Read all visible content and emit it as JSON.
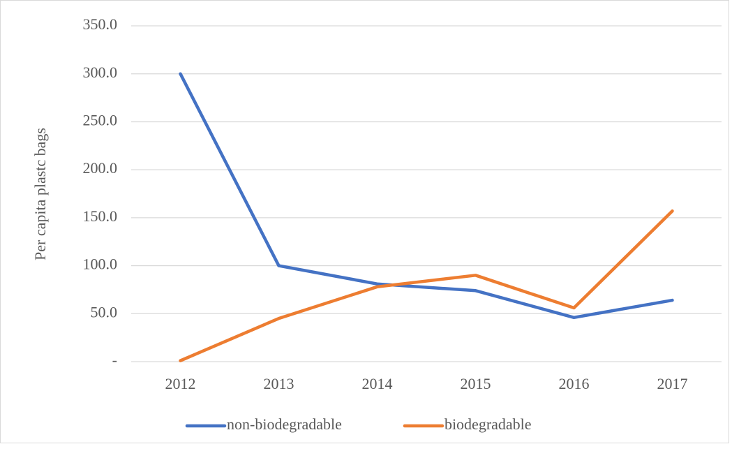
{
  "chart_data": {
    "type": "line",
    "y_label": "Per capita plastc bags",
    "categories": [
      "2012",
      "2013",
      "2014",
      "2015",
      "2016",
      "2017"
    ],
    "series": [
      {
        "name": "non-biodegradable",
        "color": "#4472c4",
        "values": [
          300,
          100,
          81,
          74,
          46,
          64
        ]
      },
      {
        "name": "biodegradable",
        "color": "#ed7d31",
        "values": [
          1,
          45,
          78,
          90,
          56,
          157
        ]
      }
    ],
    "ylim": [
      0,
      350
    ],
    "yticks": [
      {
        "value": 0,
        "label": "-"
      },
      {
        "value": 50,
        "label": "50.0"
      },
      {
        "value": 100,
        "label": "100.0"
      },
      {
        "value": 150,
        "label": "150.0"
      },
      {
        "value": 200,
        "label": "200.0"
      },
      {
        "value": 250,
        "label": "250.0"
      },
      {
        "value": 300,
        "label": "300.0"
      },
      {
        "value": 350,
        "label": "350.0"
      }
    ],
    "grid": true,
    "legend": "bottom"
  }
}
